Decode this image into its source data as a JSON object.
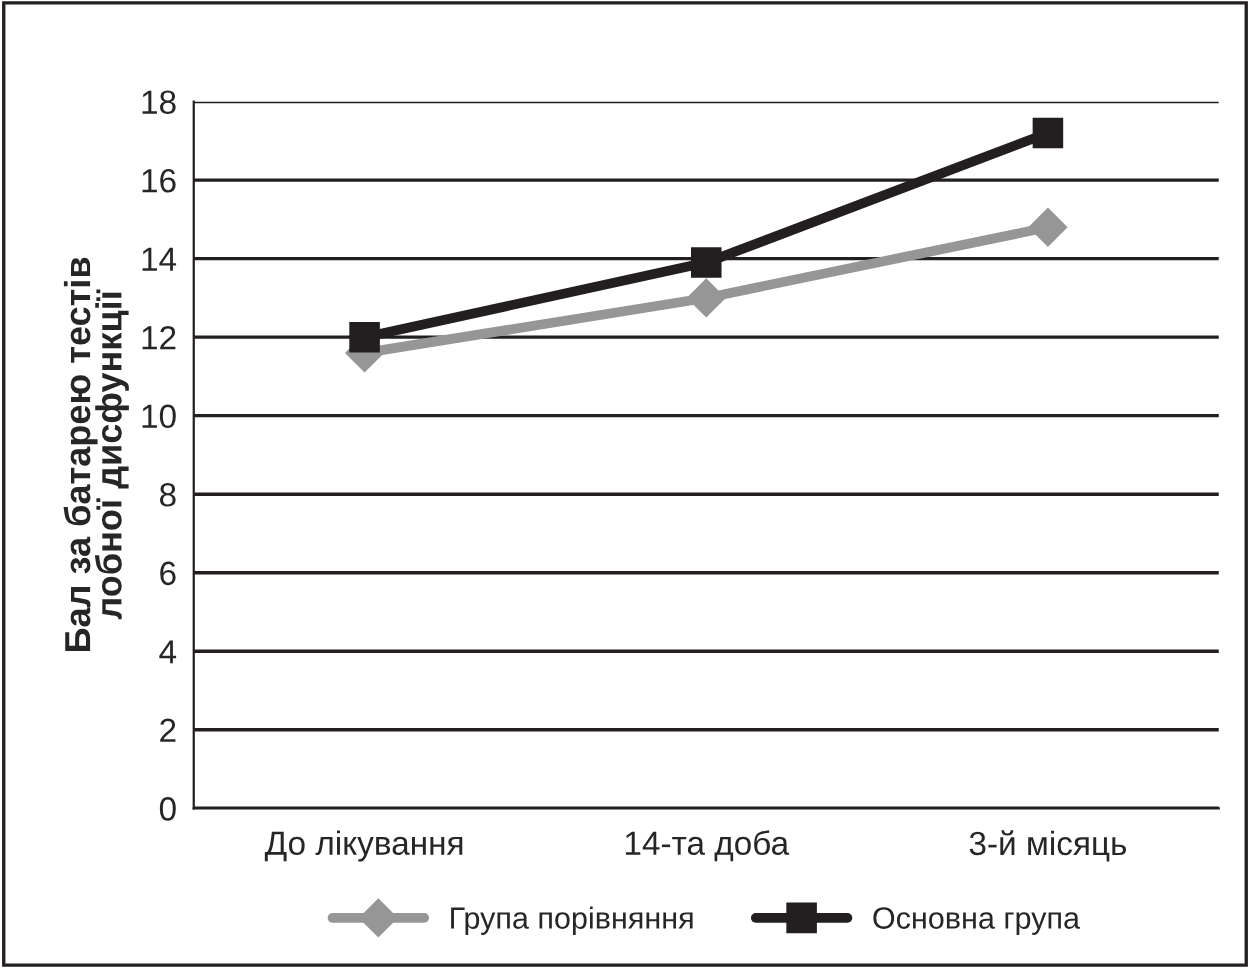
{
  "chart_data": {
    "type": "line",
    "ylabel": "Бал за батарею тестів\nлобної дисфункції",
    "categories": [
      "До лікування",
      "14-та доба",
      "3-й місяць"
    ],
    "series": [
      {
        "name": "Група порівняння",
        "color": "#969696",
        "values": [
          11.6,
          13.0,
          14.8
        ],
        "marker": "diamond"
      },
      {
        "name": "Основна група",
        "color": "#231f20",
        "values": [
          12.0,
          13.9,
          17.2
        ],
        "marker": "square"
      }
    ],
    "ylim": [
      0,
      18
    ],
    "yticks": [
      0,
      2,
      4,
      6,
      8,
      10,
      12,
      14,
      16,
      18
    ],
    "grid": "y",
    "legend": "bottom",
    "line_style": "solid"
  }
}
